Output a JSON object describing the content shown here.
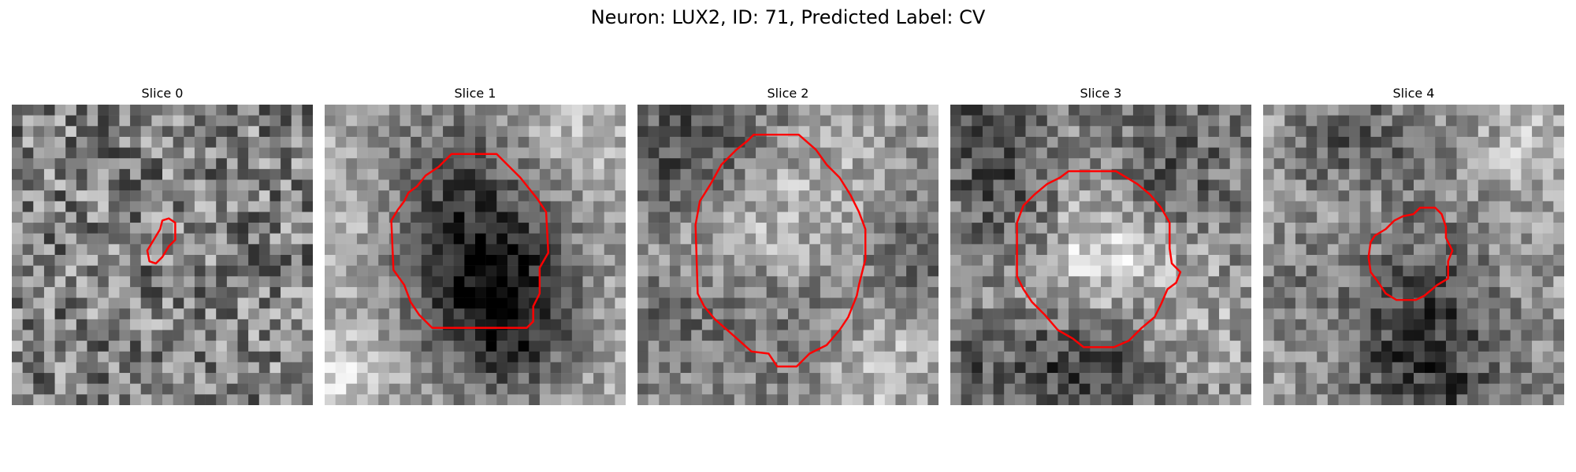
{
  "figure": {
    "title": "Neuron: LUX2, ID: 71, Predicted Label: CV",
    "grid_size": 28,
    "contour_color": "#ff0000"
  },
  "panels": [
    {
      "title": "Slice 0",
      "texture": {
        "seed": 11,
        "base": 0.5,
        "noise": 0.62,
        "blobs": []
      },
      "contour": [
        [
          14.6,
          10.6
        ],
        [
          15.2,
          11.0
        ],
        [
          15.2,
          12.6
        ],
        [
          14.6,
          13.2
        ],
        [
          14.0,
          14.2
        ],
        [
          13.4,
          14.8
        ],
        [
          12.8,
          14.6
        ],
        [
          12.6,
          13.6
        ],
        [
          13.2,
          12.6
        ],
        [
          13.8,
          11.6
        ],
        [
          14.0,
          10.8
        ]
      ]
    },
    {
      "title": "Slice 1",
      "texture": {
        "seed": 23,
        "base": 0.68,
        "noise": 0.36,
        "blobs": [
          [
            13,
            9,
            7,
            -0.42
          ],
          [
            17,
            18,
            4,
            -0.22
          ],
          [
            16,
            21,
            5,
            -0.35
          ],
          [
            11,
            14,
            4,
            -0.12
          ],
          [
            21,
            3,
            4,
            0.15
          ],
          [
            4,
            10,
            4,
            0.15
          ],
          [
            1,
            24,
            3,
            0.15
          ]
        ]
      },
      "contour": [
        [
          11.8,
          4.6
        ],
        [
          16.0,
          4.6
        ],
        [
          18.2,
          6.8
        ],
        [
          19.8,
          8.8
        ],
        [
          20.6,
          10.0
        ],
        [
          20.8,
          13.8
        ],
        [
          20.0,
          15.2
        ],
        [
          20.0,
          17.6
        ],
        [
          19.4,
          18.8
        ],
        [
          19.4,
          20.2
        ],
        [
          18.8,
          20.8
        ],
        [
          10.0,
          20.8
        ],
        [
          8.8,
          19.6
        ],
        [
          8.0,
          18.4
        ],
        [
          7.4,
          16.8
        ],
        [
          6.4,
          15.4
        ],
        [
          6.2,
          10.8
        ],
        [
          6.8,
          9.8
        ],
        [
          7.4,
          9.0
        ],
        [
          7.8,
          8.2
        ],
        [
          8.6,
          7.6
        ],
        [
          9.4,
          6.6
        ],
        [
          10.6,
          5.8
        ]
      ]
    },
    {
      "title": "Slice 2",
      "texture": {
        "seed": 37,
        "base": 0.58,
        "noise": 0.4,
        "blobs": [
          [
            12,
            11,
            7,
            0.28
          ],
          [
            13,
            18,
            6,
            -0.25
          ],
          [
            3,
            4,
            5,
            -0.3
          ],
          [
            26,
            12,
            4,
            -0.25
          ],
          [
            2,
            20,
            4,
            -0.15
          ],
          [
            22,
            24,
            4,
            0.18
          ],
          [
            10,
            3,
            4,
            -0.15
          ]
        ]
      },
      "contour": [
        [
          10.8,
          2.8
        ],
        [
          15.0,
          2.8
        ],
        [
          16.6,
          4.2
        ],
        [
          17.6,
          5.6
        ],
        [
          18.8,
          6.8
        ],
        [
          19.8,
          8.4
        ],
        [
          20.6,
          10.0
        ],
        [
          21.2,
          11.6
        ],
        [
          21.2,
          14.4
        ],
        [
          20.6,
          16.8
        ],
        [
          20.4,
          17.8
        ],
        [
          19.6,
          19.8
        ],
        [
          18.8,
          21.0
        ],
        [
          17.6,
          22.4
        ],
        [
          16.0,
          23.2
        ],
        [
          14.8,
          24.4
        ],
        [
          13.0,
          24.4
        ],
        [
          12.2,
          23.2
        ],
        [
          10.6,
          23.0
        ],
        [
          8.8,
          21.4
        ],
        [
          7.2,
          20.0
        ],
        [
          6.2,
          18.8
        ],
        [
          5.6,
          17.6
        ],
        [
          5.4,
          11.2
        ],
        [
          5.8,
          9.0
        ],
        [
          6.8,
          7.4
        ],
        [
          7.8,
          5.6
        ],
        [
          9.2,
          4.2
        ],
        [
          10.2,
          3.4
        ]
      ]
    },
    {
      "title": "Slice 3",
      "texture": {
        "seed": 53,
        "base": 0.5,
        "noise": 0.46,
        "blobs": [
          [
            13,
            13,
            6,
            0.38
          ],
          [
            6,
            9,
            4,
            -0.28
          ],
          [
            19,
            6,
            4,
            -0.25
          ],
          [
            12,
            23,
            4,
            -0.35
          ],
          [
            2,
            24,
            3,
            -0.15
          ],
          [
            25,
            21,
            4,
            0.12
          ],
          [
            2,
            2,
            3,
            -0.2
          ]
        ]
      },
      "contour": [
        [
          11.0,
          6.2
        ],
        [
          15.4,
          6.2
        ],
        [
          17.4,
          7.4
        ],
        [
          18.6,
          8.4
        ],
        [
          19.6,
          9.6
        ],
        [
          20.4,
          11.0
        ],
        [
          20.4,
          13.4
        ],
        [
          20.6,
          14.8
        ],
        [
          21.4,
          15.6
        ],
        [
          21.0,
          16.6
        ],
        [
          20.2,
          17.2
        ],
        [
          19.6,
          18.6
        ],
        [
          19.0,
          19.8
        ],
        [
          17.8,
          20.8
        ],
        [
          16.6,
          22.0
        ],
        [
          15.2,
          22.6
        ],
        [
          12.4,
          22.6
        ],
        [
          11.4,
          21.8
        ],
        [
          10.0,
          21.0
        ],
        [
          8.8,
          19.6
        ],
        [
          7.6,
          18.4
        ],
        [
          6.8,
          17.2
        ],
        [
          6.2,
          16.0
        ],
        [
          6.2,
          11.0
        ],
        [
          6.8,
          9.4
        ],
        [
          7.8,
          8.4
        ],
        [
          9.0,
          7.4
        ],
        [
          10.2,
          6.8
        ]
      ]
    },
    {
      "title": "Slice 4",
      "texture": {
        "seed": 71,
        "base": 0.62,
        "noise": 0.42,
        "blobs": [
          [
            13,
            14,
            5,
            -0.2
          ],
          [
            14,
            14,
            2,
            0.05
          ],
          [
            15,
            24,
            6,
            -0.38
          ],
          [
            11,
            2,
            4,
            -0.18
          ],
          [
            5,
            4,
            3,
            -0.18
          ],
          [
            25,
            4,
            3,
            0.12
          ],
          [
            8,
            10,
            3,
            0.12
          ],
          [
            2,
            15,
            3,
            -0.1
          ]
        ]
      },
      "contour": [
        [
          14.6,
          9.6
        ],
        [
          16.0,
          9.6
        ],
        [
          16.6,
          10.2
        ],
        [
          17.0,
          11.4
        ],
        [
          17.0,
          12.4
        ],
        [
          17.6,
          13.6
        ],
        [
          17.2,
          14.6
        ],
        [
          17.2,
          16.2
        ],
        [
          16.2,
          16.8
        ],
        [
          15.0,
          17.8
        ],
        [
          14.2,
          18.2
        ],
        [
          12.4,
          18.2
        ],
        [
          11.4,
          17.6
        ],
        [
          10.6,
          16.4
        ],
        [
          10.0,
          15.6
        ],
        [
          9.8,
          14.2
        ],
        [
          10.0,
          12.8
        ],
        [
          10.4,
          12.2
        ],
        [
          11.4,
          11.6
        ],
        [
          12.2,
          10.8
        ],
        [
          13.0,
          10.4
        ],
        [
          14.0,
          10.2
        ]
      ]
    }
  ]
}
